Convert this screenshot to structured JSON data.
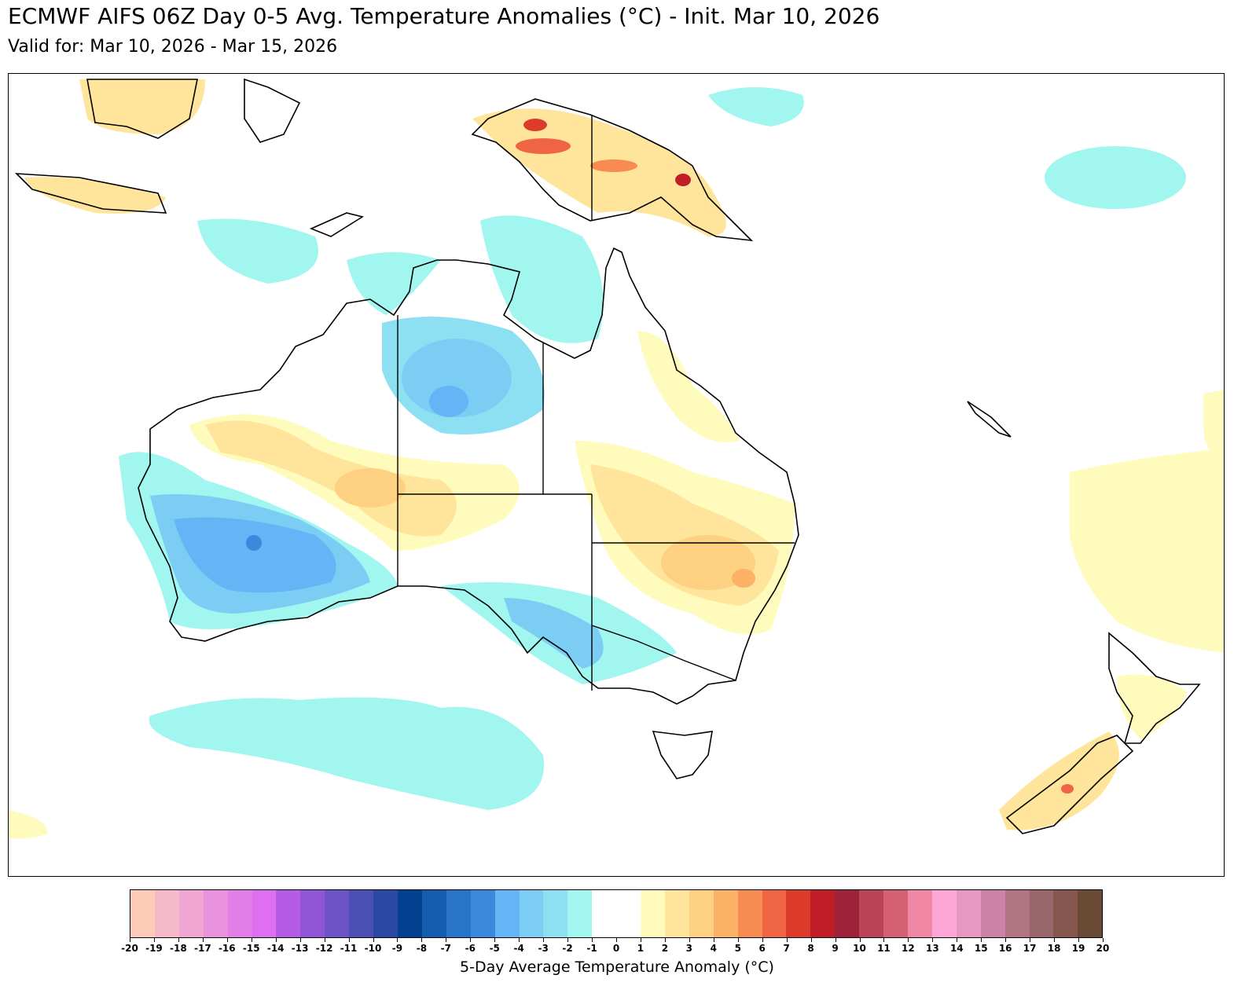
{
  "title": "ECMWF AIFS 06Z Day 0-5 Avg. Temperature Anomalies (°C) - Init. Mar 10, 2026",
  "subtitle": "Valid for: Mar 10, 2026 - Mar 15, 2026",
  "colorbar": {
    "label": "5-Day Average Temperature Anomaly (°C)",
    "ticks": [
      -20,
      -19,
      -18,
      -17,
      -16,
      -15,
      -14,
      -13,
      -12,
      -11,
      -10,
      -9,
      -8,
      -7,
      -6,
      -5,
      -4,
      -3,
      -2,
      -1,
      0,
      1,
      2,
      3,
      4,
      5,
      6,
      7,
      8,
      9,
      10,
      11,
      12,
      13,
      14,
      15,
      16,
      17,
      18,
      19,
      20
    ],
    "colors": [
      "#fdcbb8",
      "#f6b9c9",
      "#f1a5d3",
      "#e891dc",
      "#e37fe6",
      "#dd6ff0",
      "#b55ce6",
      "#8f55d6",
      "#6c53c6",
      "#4a4fb4",
      "#2a49a3",
      "#03408f",
      "#145cae",
      "#2774c9",
      "#3b88dc",
      "#65b5f6",
      "#7bcdf4",
      "#8de0f2",
      "#a1f6f0",
      "#ffffff",
      "#ffffff",
      "#fffbbc",
      "#fee59b",
      "#fdd082",
      "#fcb266",
      "#f78b52",
      "#ef6443",
      "#dd3c2d",
      "#c11d27",
      "#9e2338",
      "#bc4457",
      "#d66173",
      "#f087a5",
      "#fda6d8",
      "#e599c2",
      "#cc82a7",
      "#b17482",
      "#99676b",
      "#85574f",
      "#684a35"
    ]
  },
  "map": {
    "region": "Australia / New Zealand / New Guinea",
    "variable": "temperature anomaly"
  }
}
